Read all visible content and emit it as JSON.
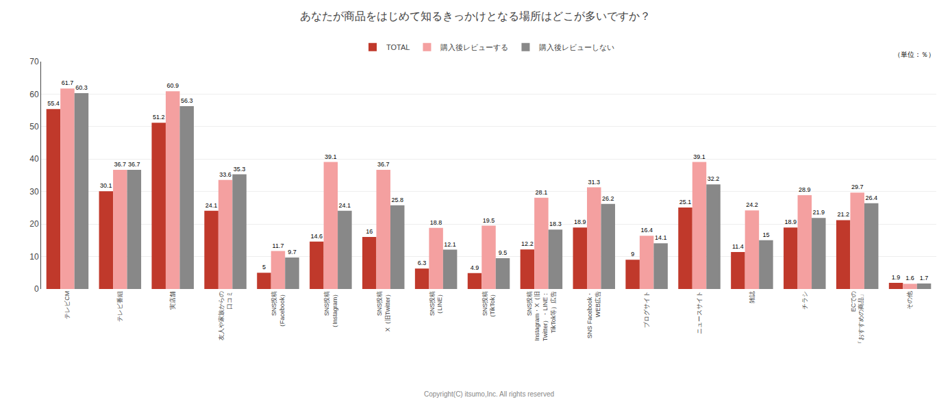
{
  "chart_data": {
    "type": "bar",
    "title": "あなたが商品をはじめて知るきっかけとなる場所はどこが多いですか？",
    "categories": [
      "テレビCM",
      "テレビ番組",
      "実店舗",
      "友人や家族からの\n口コミ",
      "SNS投稿\n（Facebook）",
      "SNS投稿\n（Instagram）",
      "SNS投稿\nX（旧Twitter）",
      "SNS投稿\n（LINE）",
      "SNS投稿\n（TikTok）",
      "SNS投稿\nInstagram・X（旧\nTwitter）・LINE：\nTikTok等）広告",
      "SNS Facebook・\nWEB広告",
      "ブログサイト",
      "ニュースサイト",
      "雑誌",
      "チラシ",
      "ECでの\n「おすすめの商品」",
      "その他"
    ],
    "series": [
      {
        "name": "TOTAL",
        "color": "#c0392b",
        "values": [
          55.4,
          30.1,
          51.2,
          24.1,
          5.0,
          14.6,
          16.0,
          6.3,
          4.9,
          12.2,
          18.9,
          9.0,
          25.1,
          11.4,
          18.9,
          21.2,
          1.9
        ]
      },
      {
        "name": "購入後レビューする",
        "color": "#f4a0a0",
        "values": [
          61.7,
          36.7,
          60.9,
          33.6,
          11.7,
          39.1,
          36.7,
          18.8,
          19.5,
          28.1,
          31.3,
          16.4,
          39.1,
          24.2,
          28.9,
          29.7,
          1.6
        ]
      },
      {
        "name": "購入後レビューしない",
        "color": "#888888",
        "values": [
          60.3,
          36.7,
          56.3,
          35.3,
          9.7,
          24.1,
          25.8,
          12.1,
          9.5,
          18.3,
          26.2,
          14.1,
          32.2,
          15.0,
          21.9,
          26.4,
          1.7
        ]
      }
    ],
    "ylim": [
      0,
      70
    ],
    "yticks": [
      0,
      10,
      20,
      30,
      40,
      50,
      60,
      70
    ],
    "grid": true,
    "legend": "top",
    "data_labels": true,
    "annotations": [
      "（単位：％）",
      "Copyright(C) itsumo,Inc. All rights reserved"
    ]
  }
}
